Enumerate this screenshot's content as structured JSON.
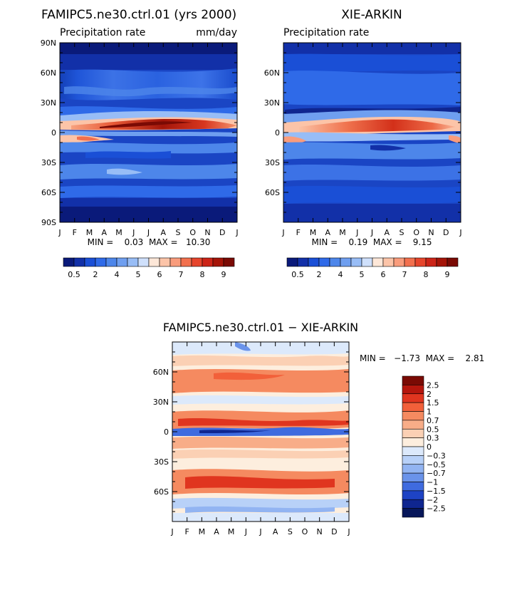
{
  "chart_data": [
    {
      "type": "heatmap",
      "title": "FAMIPC5.ne30.ctrl.01 (yrs 2000)",
      "subtitle_left": "Precipitation rate",
      "subtitle_right": "mm/day",
      "x_tick_labels": [
        "J",
        "F",
        "M",
        "A",
        "M",
        "J",
        "J",
        "A",
        "S",
        "O",
        "N",
        "D",
        "J"
      ],
      "y_tick_labels": [
        "90N",
        "60N",
        "30N",
        "0",
        "30S",
        "60S",
        "90S"
      ],
      "y_tick_values": [
        90,
        60,
        30,
        0,
        -30,
        -60,
        -90
      ],
      "ylim": [
        -90,
        90
      ],
      "min_max_text": "MIN =    0.03  MAX =   10.30",
      "colorbar_labels": [
        "0.5",
        "2",
        "4",
        "5",
        "6",
        "7",
        "8",
        "9"
      ]
    },
    {
      "type": "heatmap",
      "title": "XIE-ARKIN",
      "subtitle_left": "Precipitation rate",
      "x_tick_labels": [
        "J",
        "F",
        "M",
        "A",
        "M",
        "J",
        "J",
        "A",
        "S",
        "O",
        "N",
        "D",
        "J"
      ],
      "y_tick_labels": [
        "60N",
        "30N",
        "0",
        "30S",
        "60S"
      ],
      "y_tick_values": [
        60,
        30,
        0,
        -30,
        -60
      ],
      "ylim": [
        -90,
        90
      ],
      "min_max_text": "MIN =    0.19  MAX =    9.15",
      "colorbar_labels": [
        "0.5",
        "2",
        "4",
        "5",
        "6",
        "7",
        "8",
        "9"
      ]
    },
    {
      "type": "heatmap",
      "title": "FAMIPC5.ne30.ctrl.01 − XIE-ARKIN",
      "x_tick_labels": [
        "J",
        "F",
        "M",
        "A",
        "M",
        "J",
        "J",
        "A",
        "S",
        "O",
        "N",
        "D",
        "J"
      ],
      "y_tick_labels": [
        "60N",
        "30N",
        "0",
        "30S",
        "60S"
      ],
      "y_tick_values": [
        60,
        30,
        0,
        -30,
        -60
      ],
      "ylim": [
        -90,
        90
      ],
      "min_max_text": "MIN =   −1.73  MAX =    2.81",
      "colorbar_labels": [
        "2.5",
        "2",
        "1.5",
        "1",
        "0.7",
        "0.5",
        "0.3",
        "0",
        "−0.3",
        "−0.5",
        "−0.7",
        "−1",
        "−1.5",
        "−2",
        "−2.5"
      ]
    }
  ],
  "colors": {
    "precip_scale": [
      "#0a1a7a",
      "#1230a8",
      "#1a4fd6",
      "#2f6ae8",
      "#4d86ea",
      "#6f9ff0",
      "#98bdf6",
      "#cfe0fb",
      "#fde7d8",
      "#fcc4a8",
      "#f99c7c",
      "#f2704e",
      "#e6452c",
      "#cc2418",
      "#a51408",
      "#7a0a04"
    ],
    "diff_scale": [
      "#7a0a04",
      "#b5160d",
      "#e0351f",
      "#f2603a",
      "#f58a60",
      "#f8ad88",
      "#fbd0b4",
      "#fdeede",
      "#dce9fb",
      "#b8d1f8",
      "#92b4f2",
      "#6a93ea",
      "#3f6bdf",
      "#1e43c4",
      "#0f2690",
      "#07175a"
    ]
  }
}
